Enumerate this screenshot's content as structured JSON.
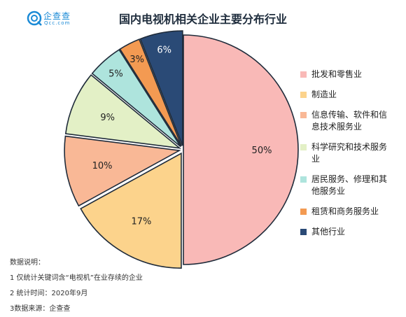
{
  "brand": {
    "name": "企查查",
    "domain": "Qcc.com",
    "color": "#1a8ad6"
  },
  "chart_data": {
    "type": "pie",
    "title": "国内电视机相关企业主要分布行业",
    "categories": [
      "批发和零售业",
      "制造业",
      "信息传输、软件和信息技术服务业",
      "科学研究和技术服务业",
      "居民服务、修理和其他服务业",
      "租赁和商务服务业",
      "其他行业"
    ],
    "values": [
      50,
      17,
      10,
      9,
      5,
      3,
      6
    ],
    "labels": [
      "50%",
      "17%",
      "10%",
      "9%",
      "5%",
      "3%",
      "6%"
    ],
    "colors": [
      "#f9b9b7",
      "#fcd38c",
      "#f9b896",
      "#e3f0c6",
      "#aee4dd",
      "#f39a52",
      "#2a4a76"
    ],
    "label_colors": [
      "#222222",
      "#222222",
      "#222222",
      "#222222",
      "#222222",
      "#222222",
      "#ffffff"
    ],
    "legend": [
      [
        "批发和零售业"
      ],
      [
        "制造业"
      ],
      [
        "信息传输、软件和信",
        "息技术服务业"
      ],
      [
        "科学研究和技术服务",
        "业"
      ],
      [
        "居民服务、修理和其",
        "他服务业"
      ],
      [
        "租赁和商务服务业"
      ],
      [
        "其他行业"
      ]
    ],
    "legend_placement": "right"
  },
  "notes": {
    "heading": "数据说明：",
    "lines": [
      "1 仅统计关键词含“电视机”在业存续的企业",
      "2 统计时间：2020年9月",
      "3数据来源：企查查"
    ]
  }
}
